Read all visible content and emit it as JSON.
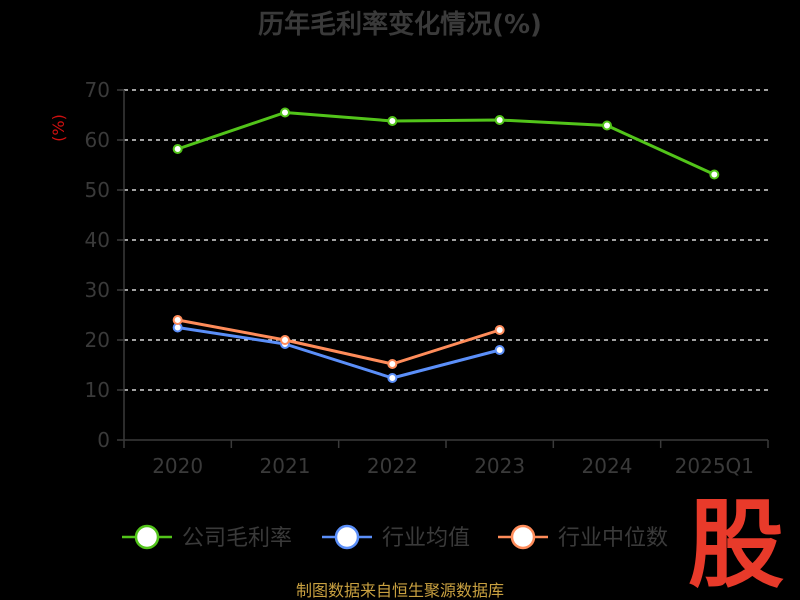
{
  "chart_data": {
    "type": "line",
    "title": "历年毛利率变化情况(%)",
    "ylabel": "(%)",
    "xlabel": "",
    "categories": [
      "2020",
      "2021",
      "2022",
      "2023",
      "2024",
      "2025Q1"
    ],
    "ylim": [
      0,
      70
    ],
    "yticks": [
      0,
      10,
      20,
      30,
      40,
      50,
      60,
      70
    ],
    "grid": true,
    "legend_position": "bottom",
    "series": [
      {
        "name": "公司毛利率",
        "color": "#52c41a",
        "values": [
          58.2,
          65.5,
          63.8,
          64.0,
          62.9,
          53.1
        ]
      },
      {
        "name": "行业均值",
        "color": "#5b8ff9",
        "values": [
          22.5,
          19.2,
          12.4,
          18.0,
          null,
          null
        ]
      },
      {
        "name": "行业中位数",
        "color": "#ff8c5a",
        "values": [
          24.0,
          20.0,
          15.2,
          22.0,
          null,
          null
        ]
      }
    ]
  },
  "source_text": "制图数据来自恒生聚源数据库",
  "logo_text": "股"
}
